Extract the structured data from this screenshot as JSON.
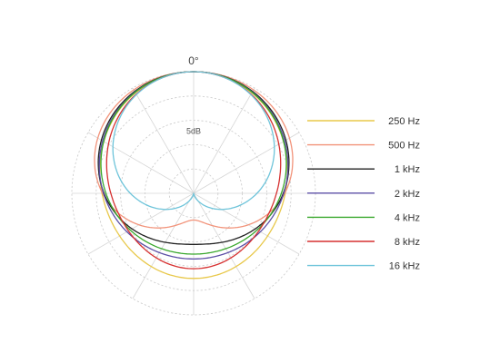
{
  "chart_data": {
    "type": "polar",
    "angle_label": "0°",
    "ring_label": "5dB",
    "grid": true,
    "legend_position": "right",
    "series": [
      {
        "name": "250 Hz",
        "color": "#e8c84a",
        "level_0": 0,
        "level_90": -6.2,
        "level_180": -7.5
      },
      {
        "name": "500 Hz",
        "color": "#f2937a",
        "level_0": 0,
        "level_90": -6.3,
        "level_180": -19.5
      },
      {
        "name": "1 kHz",
        "color": "#222222",
        "level_0": 0,
        "level_90": -6.6,
        "level_180": -14.5
      },
      {
        "name": "2 kHz",
        "color": "#5c4fa6",
        "level_0": 0,
        "level_90": -6.5,
        "level_180": -11.5
      },
      {
        "name": "4 kHz",
        "color": "#3aa82e",
        "level_0": 0,
        "level_90": -7.0,
        "level_180": -12.5
      },
      {
        "name": "8 kHz",
        "color": "#d63030",
        "level_0": 0,
        "level_90": -8.0,
        "level_180": -9.5
      },
      {
        "name": "16 kHz",
        "color": "#6ec4da",
        "level_0": 0,
        "level_90": -12.0,
        "level_180": -25
      }
    ]
  }
}
